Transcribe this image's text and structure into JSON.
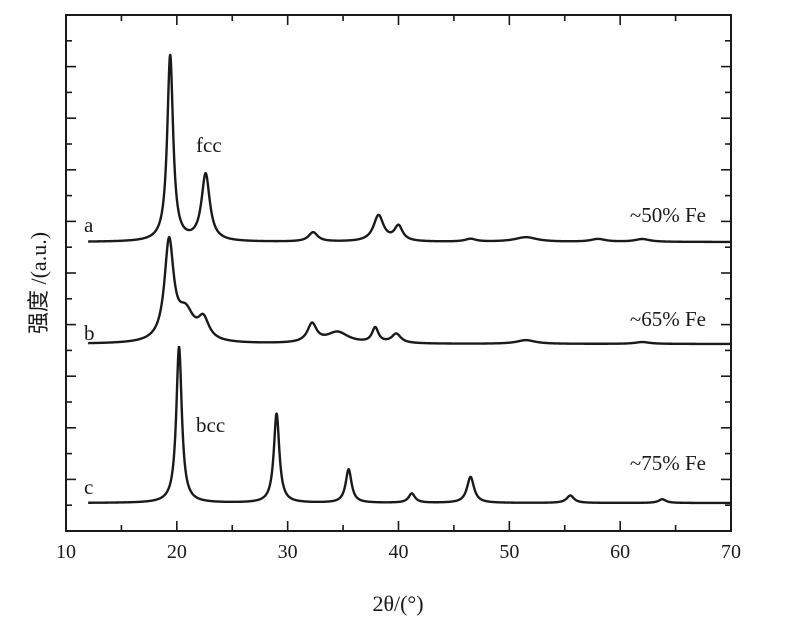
{
  "chart_data": {
    "type": "line",
    "title": "",
    "xlabel": "2θ/(°)",
    "ylabel": "强度 /(a.u.)",
    "xlim": [
      10,
      70
    ],
    "x_ticks": [
      10,
      20,
      30,
      40,
      50,
      60,
      70
    ],
    "y_ticks_shown": false,
    "grid": false,
    "legend": "none",
    "series": [
      {
        "name": "a",
        "label": "~50% Fe",
        "baseline": 0,
        "peaks": [
          {
            "x": 19.4,
            "h": 1.0,
            "w": 0.32
          },
          {
            "x": 22.6,
            "h": 0.36,
            "w": 0.45
          },
          {
            "x": 32.3,
            "h": 0.05,
            "w": 0.5
          },
          {
            "x": 38.2,
            "h": 0.14,
            "w": 0.55
          },
          {
            "x": 40.0,
            "h": 0.08,
            "w": 0.45
          },
          {
            "x": 46.5,
            "h": 0.015,
            "w": 0.6
          },
          {
            "x": 51.5,
            "h": 0.025,
            "w": 1.2
          },
          {
            "x": 58.0,
            "h": 0.015,
            "w": 0.8
          },
          {
            "x": 62.0,
            "h": 0.015,
            "w": 0.8
          }
        ]
      },
      {
        "name": "b",
        "label": "~65% Fe",
        "baseline": 0,
        "peaks": [
          {
            "x": 19.3,
            "h": 0.53,
            "w": 0.5
          },
          {
            "x": 20.8,
            "h": 0.15,
            "w": 0.9
          },
          {
            "x": 22.4,
            "h": 0.11,
            "w": 0.6
          },
          {
            "x": 32.2,
            "h": 0.1,
            "w": 0.5
          },
          {
            "x": 34.5,
            "h": 0.06,
            "w": 1.2
          },
          {
            "x": 37.9,
            "h": 0.08,
            "w": 0.35
          },
          {
            "x": 39.8,
            "h": 0.05,
            "w": 0.5
          },
          {
            "x": 51.5,
            "h": 0.02,
            "w": 1.0
          },
          {
            "x": 62.0,
            "h": 0.01,
            "w": 0.8
          }
        ]
      },
      {
        "name": "c",
        "label": "~75% Fe",
        "baseline": 0,
        "peaks": [
          {
            "x": 20.2,
            "h": 0.84,
            "w": 0.3
          },
          {
            "x": 29.0,
            "h": 0.48,
            "w": 0.3
          },
          {
            "x": 35.5,
            "h": 0.18,
            "w": 0.32
          },
          {
            "x": 41.2,
            "h": 0.05,
            "w": 0.35
          },
          {
            "x": 46.5,
            "h": 0.14,
            "w": 0.38
          },
          {
            "x": 55.5,
            "h": 0.04,
            "w": 0.4
          },
          {
            "x": 63.8,
            "h": 0.02,
            "w": 0.4
          }
        ]
      }
    ],
    "annotations": [
      {
        "text": "fcc",
        "near_x": 23.6
      },
      {
        "text": "bcc",
        "near_x": 21.4
      }
    ]
  }
}
